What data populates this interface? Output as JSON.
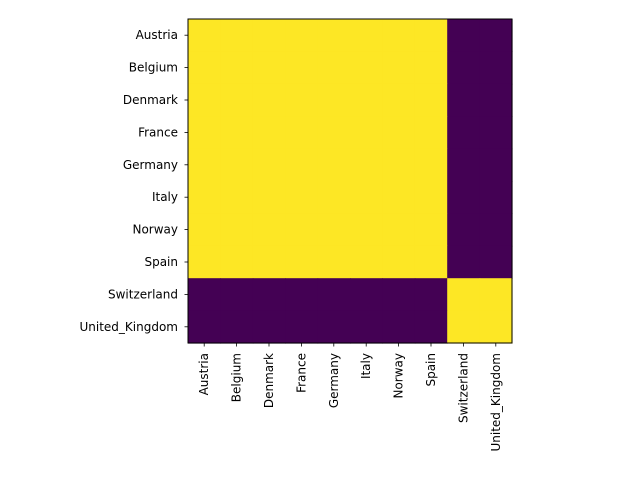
{
  "chart_data": {
    "type": "heatmap",
    "title": "",
    "xlabel": "",
    "ylabel": "",
    "x_categories": [
      "Austria",
      "Belgium",
      "Denmark",
      "France",
      "Germany",
      "Italy",
      "Norway",
      "Spain",
      "Switzerland",
      "United_Kingdom"
    ],
    "y_categories": [
      "Austria",
      "Belgium",
      "Denmark",
      "France",
      "Germany",
      "Italy",
      "Norway",
      "Spain",
      "Switzerland",
      "United_Kingdom"
    ],
    "values": [
      [
        1,
        1,
        1,
        1,
        1,
        1,
        1,
        1,
        0,
        0
      ],
      [
        1,
        1,
        1,
        1,
        1,
        1,
        1,
        1,
        0,
        0
      ],
      [
        1,
        1,
        1,
        1,
        1,
        1,
        1,
        1,
        0,
        0
      ],
      [
        1,
        1,
        1,
        1,
        1,
        1,
        1,
        1,
        0,
        0
      ],
      [
        1,
        1,
        1,
        1,
        1,
        1,
        1,
        1,
        0,
        0
      ],
      [
        1,
        1,
        1,
        1,
        1,
        1,
        1,
        1,
        0,
        0
      ],
      [
        1,
        1,
        1,
        1,
        1,
        1,
        1,
        1,
        0,
        0
      ],
      [
        1,
        1,
        1,
        1,
        1,
        1,
        1,
        1,
        0,
        0
      ],
      [
        0,
        0,
        0,
        0,
        0,
        0,
        0,
        0,
        1,
        1
      ],
      [
        0,
        0,
        0,
        0,
        0,
        0,
        0,
        0,
        1,
        1
      ]
    ],
    "colormap": "viridis",
    "value_range": [
      0,
      1
    ],
    "colors": {
      "low": "#440154",
      "high": "#fde725"
    },
    "grid": false,
    "legend": "none"
  }
}
